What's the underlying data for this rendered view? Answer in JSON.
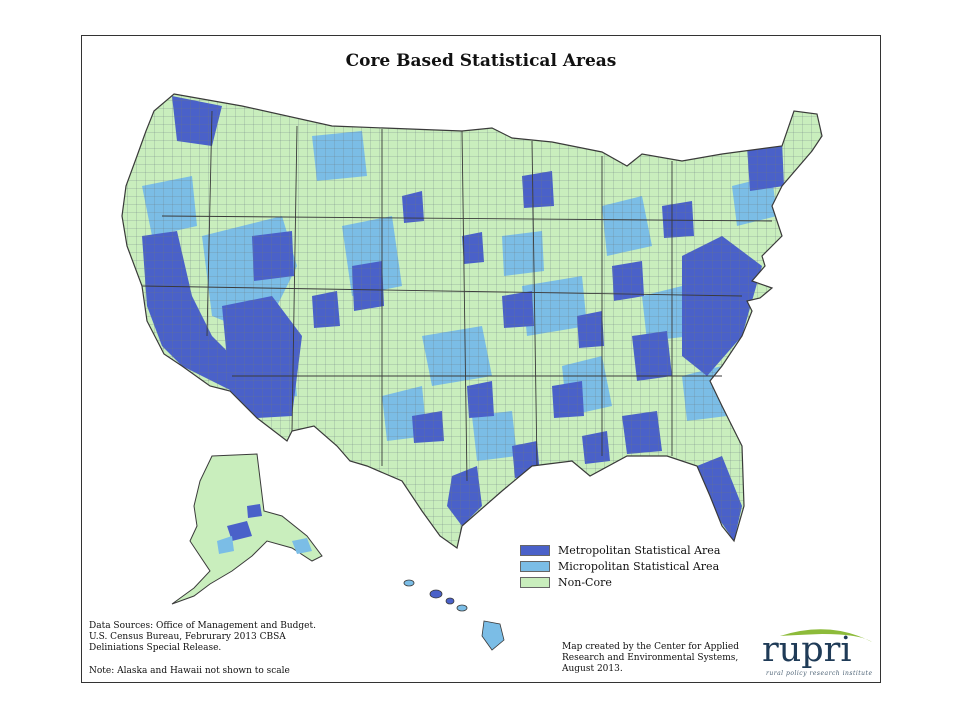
{
  "title": "Core Based Statistical Areas",
  "colors": {
    "metropolitan": "#4a61c9",
    "micropolitan": "#7bbde6",
    "noncore": "#c9eebd",
    "county_border": "#6b7b80",
    "state_border": "#3a3a3a",
    "frame": "#333333",
    "logo_text": "#1f3b57",
    "logo_swoosh": "#8dbb3a"
  },
  "legend": {
    "items": [
      {
        "label": "Metropolitan Statistical Area",
        "color": "#4a61c9"
      },
      {
        "label": "Micropolitan Statistical Area",
        "color": "#7bbde6"
      },
      {
        "label": "Non-Core",
        "color": "#c9eebd"
      }
    ]
  },
  "sources": {
    "lines": [
      "Data Sources: Office of Management and Budget.",
      "U.S. Census Bureau, Februrary 2013 CBSA",
      "Deliniations Special Release."
    ],
    "note": "Note: Alaska and Hawaii not shown to scale"
  },
  "credit": {
    "lines": [
      "Map created by the Center for Applied",
      "Research and Environmental Systems,",
      "August 2013."
    ]
  },
  "logo": {
    "word": "rupri",
    "tagline": "rural policy research institute"
  },
  "map": {
    "regions": [
      "Contiguous United States",
      "Alaska",
      "Hawaii"
    ]
  }
}
